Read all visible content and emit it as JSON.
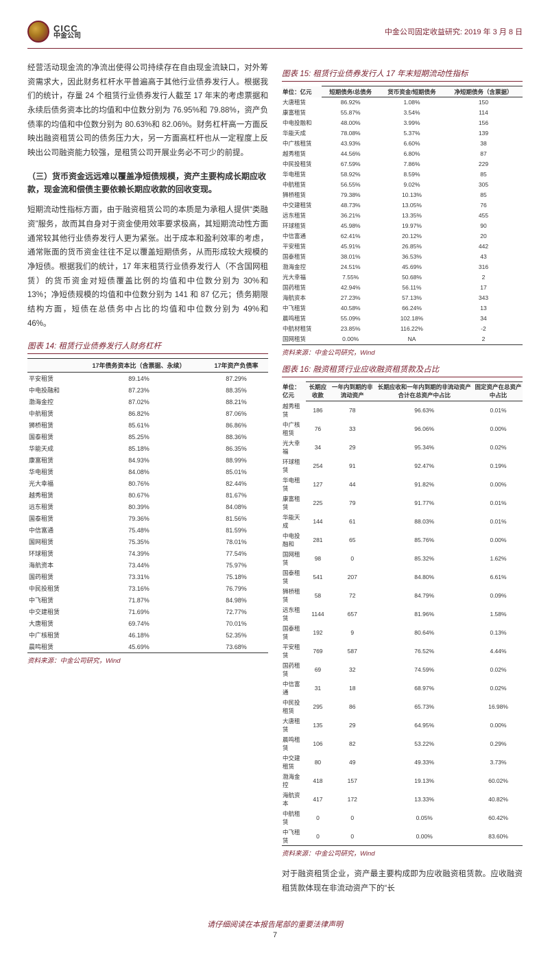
{
  "header": {
    "cicc": "CICC",
    "cn": "中金公司",
    "right": "中金公司固定收益研究: 2019 年 3 月 8 日"
  },
  "p1": "经营活动现金流的净流出使得公司持续存在自由现金流缺口，对外筹资需求大，因此财务杠杆水平普遍高于其他行业债券发行人。根据我们的统计，存量 24 个租赁行业债券发行人截至 17 年末的考虑票据和永续后债务资本比的均值和中位数分别为 76.95%和 79.88%，资产负债率的均值和中位数分别为 80.63%和 82.06%。财务杠杆高一方面反映出融资租赁公司的债务压力大，另一方面高杠杆也从一定程度上反映出公司融资能力较强，是租赁公司开展业务必不可少的前提。",
  "sub": "（三）货币资金远远难以覆盖净短债规模，资产主要构成长期应收款，现金流和偿债主要依赖长期应收款的回收变现。",
  "p2": "短期流动性指标方面，由于融资租赁公司的本质是为承租人提供“类融资”服务，故而其自身对于资金使用效率要求极高，其短期流动性方面通常较其他行业债券发行人更为紧张。出于成本和盈利效率的考虑，通常账面的货币资金往往不足以覆盖短期债务，从而形成较大规模的净短债。根据我们的统计，17 年末租赁行业债券发行人（不含国网租赁）的货币资金对短债覆盖比例的均值和中位数分别为 30%和 13%；净短债规模的均值和中位数分别为 141 和 87 亿元；债务期限结构方面，短债在总债务中占比的均值和中位数分别为 49%和 46%。",
  "p3": "对于融资租赁企业，资产最主要构成即为应收融资租赁款。应收融资租赁款体现在非流动资产下的“长",
  "t14": {
    "title": "图表 14: 租赁行业债券发行人财务杠杆",
    "cols": [
      "",
      "17年债务资本比（含票据、永续）",
      "17年资产负债率"
    ],
    "rows": [
      [
        "平安租赁",
        "89.14%",
        "87.29%"
      ],
      [
        "中电投融和",
        "87.23%",
        "88.35%"
      ],
      [
        "渤海金控",
        "87.02%",
        "88.21%"
      ],
      [
        "中航租赁",
        "86.82%",
        "87.06%"
      ],
      [
        "狮桥租赁",
        "85.61%",
        "86.86%"
      ],
      [
        "国泰租赁",
        "85.25%",
        "88.36%"
      ],
      [
        "华能天成",
        "85.18%",
        "86.35%"
      ],
      [
        "康富租赁",
        "84.93%",
        "88.99%"
      ],
      [
        "华电租赁",
        "84.08%",
        "85.01%"
      ],
      [
        "光大幸福",
        "80.76%",
        "82.44%"
      ],
      [
        "越秀租赁",
        "80.67%",
        "81.67%"
      ],
      [
        "远东租赁",
        "80.39%",
        "84.08%"
      ],
      [
        "国泰租赁",
        "79.36%",
        "81.56%"
      ],
      [
        "中信富通",
        "75.48%",
        "81.59%"
      ],
      [
        "国网租赁",
        "75.35%",
        "78.01%"
      ],
      [
        "环球租赁",
        "74.39%",
        "77.54%"
      ],
      [
        "海航资本",
        "73.44%",
        "75.97%"
      ],
      [
        "国药租赁",
        "73.31%",
        "75.18%"
      ],
      [
        "中民投租赁",
        "73.16%",
        "76.79%"
      ],
      [
        "中飞租赁",
        "71.87%",
        "84.98%"
      ],
      [
        "中交建租赁",
        "71.69%",
        "72.77%"
      ],
      [
        "大唐租赁",
        "69.74%",
        "70.01%"
      ],
      [
        "中广核租赁",
        "46.18%",
        "52.35%"
      ],
      [
        "晨鸣租赁",
        "45.69%",
        "73.68%"
      ]
    ]
  },
  "t15": {
    "title": "图表 15: 租赁行业债券发行人 17 年末短期流动性指标",
    "unit": "单位：亿元",
    "cols": [
      "",
      "短期债务/总债务",
      "货币资金/短期债务",
      "净短期债务（含票据）"
    ],
    "rows": [
      [
        "大唐租赁",
        "86.92%",
        "1.08%",
        "150"
      ],
      [
        "康富租赁",
        "55.87%",
        "3.54%",
        "114"
      ],
      [
        "中电投融和",
        "48.00%",
        "3.99%",
        "156"
      ],
      [
        "华能天成",
        "78.08%",
        "5.37%",
        "139"
      ],
      [
        "中广核租赁",
        "43.93%",
        "6.60%",
        "38"
      ],
      [
        "越秀租赁",
        "44.56%",
        "6.80%",
        "87"
      ],
      [
        "中民投租赁",
        "67.59%",
        "7.86%",
        "229"
      ],
      [
        "华电租赁",
        "58.92%",
        "8.59%",
        "85"
      ],
      [
        "中航租赁",
        "56.55%",
        "9.02%",
        "305"
      ],
      [
        "狮桥租赁",
        "79.38%",
        "10.13%",
        "85"
      ],
      [
        "中交建租赁",
        "48.73%",
        "13.05%",
        "76"
      ],
      [
        "远东租赁",
        "36.21%",
        "13.35%",
        "455"
      ],
      [
        "环球租赁",
        "45.98%",
        "19.97%",
        "90"
      ],
      [
        "中信富通",
        "62.41%",
        "20.12%",
        "20"
      ],
      [
        "平安租赁",
        "45.91%",
        "26.85%",
        "442"
      ],
      [
        "国泰租赁",
        "38.01%",
        "36.53%",
        "43"
      ],
      [
        "渤海金控",
        "24.51%",
        "45.69%",
        "316"
      ],
      [
        "光大幸福",
        "7.55%",
        "50.68%",
        "2"
      ],
      [
        "国药租赁",
        "42.94%",
        "56.11%",
        "17"
      ],
      [
        "海航资本",
        "27.23%",
        "57.13%",
        "343"
      ],
      [
        "中飞租赁",
        "40.58%",
        "66.24%",
        "13"
      ],
      [
        "晨鸣租赁",
        "55.09%",
        "102.18%",
        "34"
      ],
      [
        "中航材租赁",
        "23.85%",
        "116.22%",
        "-2"
      ],
      [
        "国网租赁",
        "0.00%",
        "NA",
        "2"
      ]
    ]
  },
  "t16": {
    "title": "图表 16: 融资租赁行业应收融资租赁款及占比",
    "unit": "单位：亿元",
    "cols": [
      "",
      "长期应收款",
      "一年内到期的非流动资产",
      "长期应收和一年内到期的非流动资产合计在总资产中占比",
      "固定资产在总资产中占比"
    ],
    "rows": [
      [
        "越秀租赁",
        "186",
        "78",
        "96.63%",
        "0.01%"
      ],
      [
        "中广核租赁",
        "76",
        "33",
        "96.06%",
        "0.00%"
      ],
      [
        "光大幸福",
        "34",
        "29",
        "95.34%",
        "0.02%"
      ],
      [
        "环球租赁",
        "254",
        "91",
        "92.47%",
        "0.19%"
      ],
      [
        "华电租赁",
        "127",
        "44",
        "91.82%",
        "0.00%"
      ],
      [
        "康富租赁",
        "225",
        "79",
        "91.77%",
        "0.01%"
      ],
      [
        "华能天成",
        "144",
        "61",
        "88.03%",
        "0.01%"
      ],
      [
        "中电投融和",
        "281",
        "65",
        "85.76%",
        "0.00%"
      ],
      [
        "国网租赁",
        "98",
        "0",
        "85.32%",
        "1.62%"
      ],
      [
        "国泰租赁",
        "541",
        "207",
        "84.80%",
        "6.61%"
      ],
      [
        "狮桥租赁",
        "58",
        "72",
        "84.79%",
        "0.09%"
      ],
      [
        "远东租赁",
        "1144",
        "657",
        "81.96%",
        "1.58%"
      ],
      [
        "国泰租赁",
        "192",
        "9",
        "80.64%",
        "0.13%"
      ],
      [
        "平安租赁",
        "769",
        "587",
        "76.52%",
        "4.44%"
      ],
      [
        "国药租赁",
        "69",
        "32",
        "74.59%",
        "0.02%"
      ],
      [
        "中信富通",
        "31",
        "18",
        "68.97%",
        "0.02%"
      ],
      [
        "中民投租赁",
        "295",
        "86",
        "65.73%",
        "16.98%"
      ],
      [
        "大唐租赁",
        "135",
        "29",
        "64.95%",
        "0.00%"
      ],
      [
        "晨鸣租赁",
        "106",
        "82",
        "53.22%",
        "0.29%"
      ],
      [
        "中交建租赁",
        "80",
        "49",
        "49.33%",
        "3.73%"
      ],
      [
        "渤海金控",
        "418",
        "157",
        "19.13%",
        "60.02%"
      ],
      [
        "海航资本",
        "417",
        "172",
        "13.33%",
        "40.82%"
      ],
      [
        "中航租赁",
        "0",
        "0",
        "0.05%",
        "60.42%"
      ],
      [
        "中飞租赁",
        "0",
        "0",
        "0.00%",
        "83.60%"
      ]
    ]
  },
  "source": "资料来源：中金公司研究，Wind",
  "footer": "请仔细阅读在本报告尾部的重要法律声明",
  "pagenum": "7"
}
